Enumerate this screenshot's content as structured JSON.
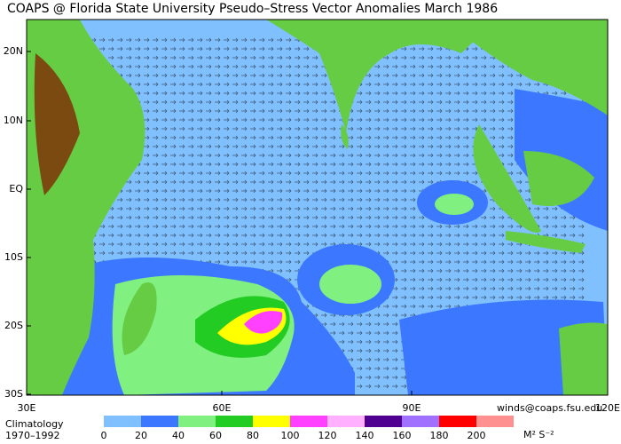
{
  "header": {
    "title": "COAPS @ Florida State University Pseudo–Stress Vector Anomalies  March 1986"
  },
  "map": {
    "lat_labels": [
      "20N",
      "10N",
      "EQ",
      "10S",
      "20S",
      "30S"
    ],
    "lon_labels": [
      "30E",
      "60E",
      "90E",
      "120E"
    ]
  },
  "credit": "winds@coaps.fsu.edu",
  "climatology": [
    "Climatology",
    "1970–1992"
  ],
  "colorbar": {
    "colors": [
      "#80c0ff",
      "#3c78ff",
      "#80f080",
      "#22cc22",
      "#ffff00",
      "#ff40ff",
      "#ffb0ff",
      "#500090",
      "#a070ff",
      "#ff0000",
      "#ff9090"
    ],
    "labels": [
      "0",
      "20",
      "40",
      "60",
      "80",
      "100",
      "120",
      "140",
      "160",
      "180",
      "200"
    ],
    "units": "M² S⁻²"
  }
}
